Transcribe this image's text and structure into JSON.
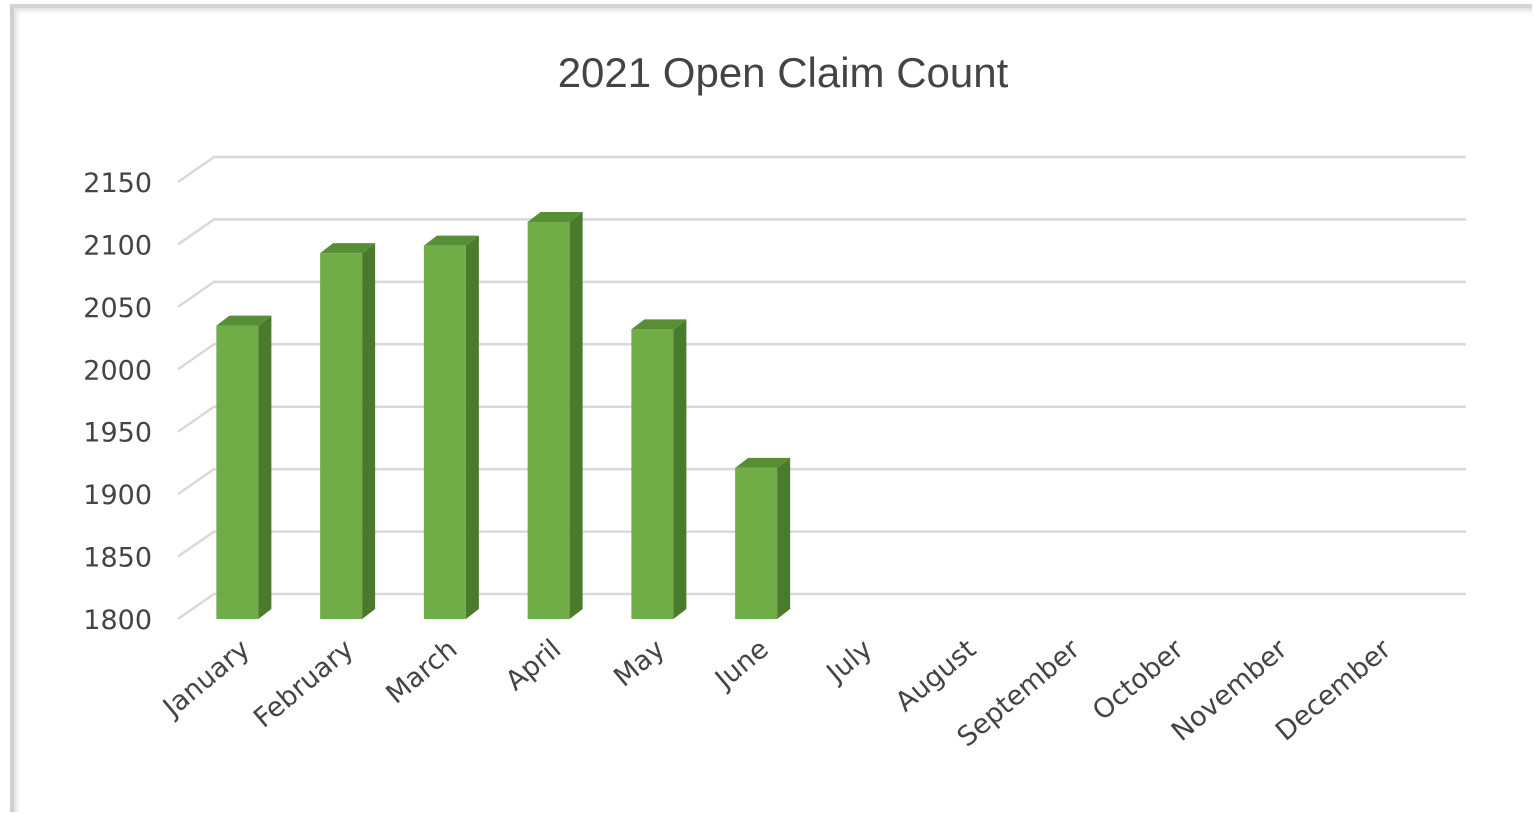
{
  "chart_data": {
    "type": "bar",
    "title": "2021 Open Claim Count",
    "xlabel": "",
    "ylabel": "",
    "categories": [
      "January",
      "February",
      "March",
      "April",
      "May",
      "June",
      "July",
      "August",
      "September",
      "October",
      "November",
      "December"
    ],
    "values": [
      2035,
      2093,
      2099,
      2118,
      2032,
      1921,
      null,
      null,
      null,
      null,
      null,
      null
    ],
    "ylim": [
      1800,
      2150
    ],
    "yticks": [
      1800,
      1850,
      1900,
      1950,
      2000,
      2050,
      2100,
      2150
    ],
    "grid": true,
    "legend": "none",
    "bar_color": "#70AD47",
    "bar_side_color": "#4A7A2B",
    "bar_top_color": "#588F35"
  }
}
